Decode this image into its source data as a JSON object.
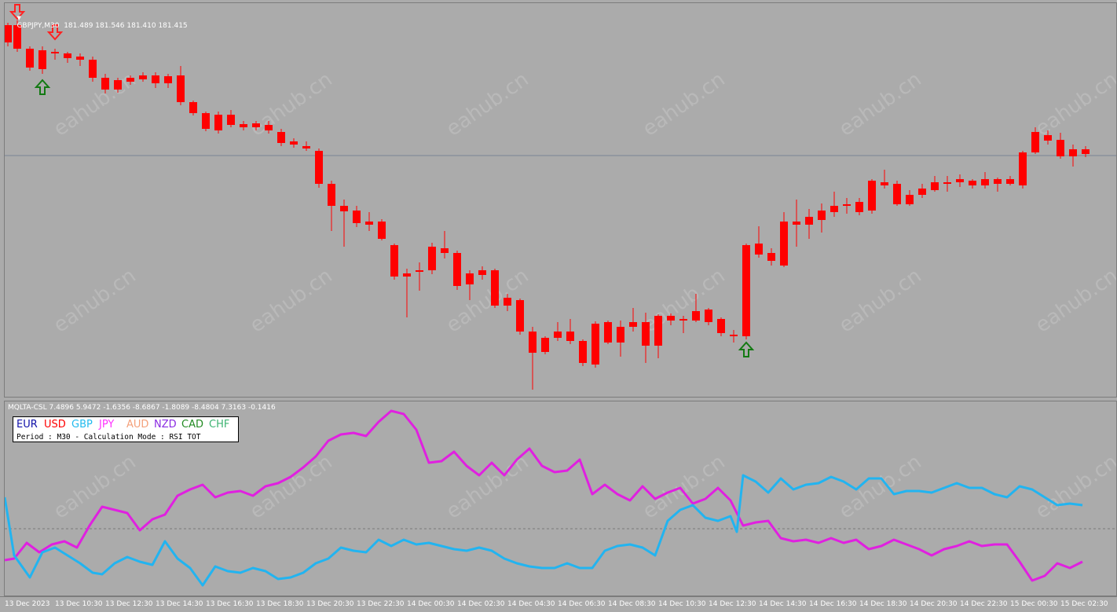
{
  "main_chart": {
    "symbol_line": "GBPJPY,M30  181.489 181.546 181.410 181.415",
    "colors": {
      "bull": "#00ff00",
      "bear": "#ff0000",
      "up_arrow": "#137a13",
      "down_arrow": "#ff2222",
      "hline": "#7a8696"
    }
  },
  "indicator": {
    "header": "MQLTA-CSL 7.4896 5.9472 -1.6356 -8.6867 -1.8089 -8.4804 7.3163 -0.1416",
    "legend": {
      "currencies": [
        {
          "name": "EUR",
          "color": "#1010a8"
        },
        {
          "name": "USD",
          "color": "#ff0000"
        },
        {
          "name": "GBP",
          "color": "#22bbee"
        },
        {
          "name": "JPY",
          "color": "#ff33ff"
        },
        {
          "name": "AUD",
          "color": "#f4a07a"
        },
        {
          "name": "NZD",
          "color": "#8a2be2"
        },
        {
          "name": "CAD",
          "color": "#228b22"
        },
        {
          "name": "CHF",
          "color": "#3cb371"
        }
      ],
      "subtitle": "Period : M30 - Calculation Mode : RSI TOT"
    },
    "line_colors": {
      "jpy": "#e020e0",
      "gbp": "#22b4f0"
    }
  },
  "watermark": "eahub.cn",
  "time_axis": [
    "13 Dec 2023",
    "13 Dec 10:30",
    "13 Dec 12:30",
    "13 Dec 14:30",
    "13 Dec 16:30",
    "13 Dec 18:30",
    "13 Dec 20:30",
    "13 Dec 22:30",
    "14 Dec 00:30",
    "14 Dec 02:30",
    "14 Dec 04:30",
    "14 Dec 06:30",
    "14 Dec 08:30",
    "14 Dec 10:30",
    "14 Dec 12:30",
    "14 Dec 14:30",
    "14 Dec 16:30",
    "14 Dec 18:30",
    "14 Dec 20:30",
    "14 Dec 22:30",
    "15 Dec 00:30",
    "15 Dec 02:30"
  ]
}
